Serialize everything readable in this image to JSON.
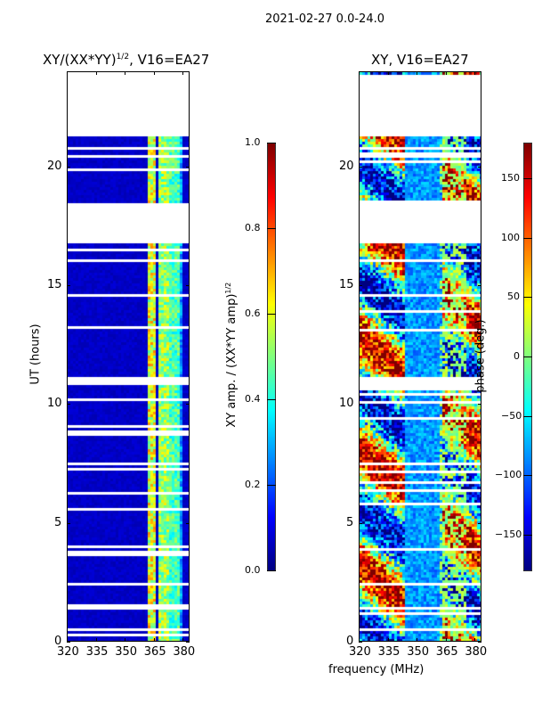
{
  "chart_data": [
    {
      "type": "heatmap",
      "title": "XY/(XX*YY)^{1/2}, V16=EA27",
      "title_main": "XY/(XX*YY)",
      "title_sup": "1/2",
      "title_tail": ", V16=EA27",
      "xlabel": "",
      "ylabel": "UT (hours)",
      "xlim": [
        320,
        383.5
      ],
      "ylim": [
        0,
        24
      ],
      "xticks": [
        "320",
        "335",
        "350",
        "365",
        "380"
      ],
      "yticks": [
        "0",
        "5",
        "10",
        "15",
        "20"
      ],
      "colorbar": {
        "label": "XY amp. / (XX*YY amp)",
        "label_sup": "1/2",
        "range": [
          0.0,
          1.0
        ],
        "ticks": [
          "0.0",
          "0.2",
          "0.4",
          "0.6",
          "0.8",
          "1.0"
        ],
        "colormap": "jet"
      }
    },
    {
      "type": "heatmap",
      "title": "XY, V16=EA27",
      "xlabel": "frequency (MHz)",
      "ylabel": "",
      "xlim": [
        320,
        383.5
      ],
      "ylim": [
        0,
        24
      ],
      "xticks": [
        "320",
        "335",
        "350",
        "365",
        "380"
      ],
      "yticks": [
        "0",
        "5",
        "10",
        "15",
        "20"
      ],
      "colorbar": {
        "label": "phase (deg.)",
        "range": [
          -180,
          180
        ],
        "ticks": [
          "-150",
          "-100",
          "-50",
          "0",
          "50",
          "100",
          "150"
        ],
        "colormap": "jet"
      }
    }
  ],
  "suptitle": "2021-02-27 0.0-24.0",
  "flagged_hours": [
    [
      21.4,
      24.0
    ],
    [
      16.8,
      18.5
    ],
    [
      0.45,
      0.55
    ],
    [
      1.4,
      1.5
    ],
    [
      2.4,
      2.5
    ],
    [
      7.5,
      7.6
    ],
    [
      10.9,
      11.2
    ],
    [
      14.6,
      14.7
    ],
    [
      16.0,
      16.15
    ],
    [
      20.8,
      20.9
    ]
  ]
}
